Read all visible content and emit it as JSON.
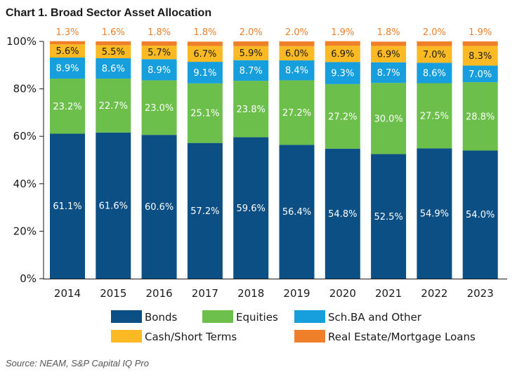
{
  "chart_data": {
    "type": "bar",
    "stacked": true,
    "title": "Chart 1. Broad Sector Asset Allocation",
    "categories": [
      "2014",
      "2015",
      "2016",
      "2017",
      "2018",
      "2019",
      "2020",
      "2021",
      "2022",
      "2023"
    ],
    "series": [
      {
        "name": "Bonds",
        "color": "#0c4f84",
        "values": [
          61.1,
          61.6,
          60.6,
          57.2,
          59.6,
          56.4,
          54.8,
          52.5,
          54.9,
          54.0
        ]
      },
      {
        "name": "Equities",
        "color": "#6cbf4b",
        "values": [
          23.2,
          22.7,
          23.0,
          25.1,
          23.8,
          27.2,
          27.2,
          30.0,
          27.5,
          28.8
        ]
      },
      {
        "name": "Sch.BA and Other",
        "color": "#169fdc",
        "values": [
          8.9,
          8.6,
          8.9,
          9.1,
          8.7,
          8.4,
          9.3,
          8.7,
          8.6,
          7.0
        ]
      },
      {
        "name": "Cash/Short Terms",
        "color": "#fbb923",
        "values": [
          5.6,
          5.5,
          5.7,
          6.7,
          5.9,
          6.0,
          6.9,
          6.9,
          7.0,
          8.3
        ]
      },
      {
        "name": "Real Estate/Mortgage Loans",
        "color": "#f07f2a",
        "values": [
          1.3,
          1.6,
          1.8,
          1.8,
          2.0,
          2.0,
          1.9,
          1.8,
          2.0,
          1.9
        ]
      }
    ],
    "yticks": [
      "0%",
      "20%",
      "40%",
      "60%",
      "80%",
      "100%"
    ],
    "ylim": [
      0,
      100
    ],
    "xlabel": "",
    "ylabel": "",
    "legend_position": "bottom",
    "grid": false
  },
  "source": "Source: NEAM, S&P Capital IQ Pro"
}
